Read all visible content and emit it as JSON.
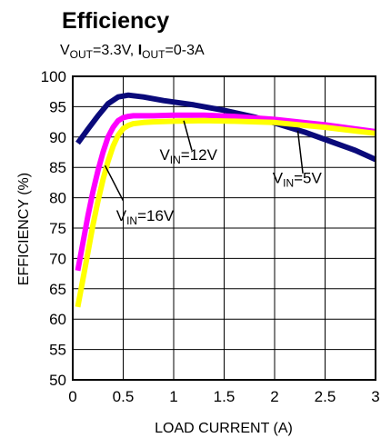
{
  "chart_data": {
    "type": "line",
    "title": "Efficiency",
    "subtitle": {
      "parts": [
        {
          "text": "V",
          "bold": false,
          "sub": false
        },
        {
          "text": "OUT",
          "bold": false,
          "sub": true
        },
        {
          "text": "=3.3V, ",
          "bold": false,
          "sub": false
        },
        {
          "text": "I",
          "bold": true,
          "sub": false
        },
        {
          "text": "OUT",
          "bold": false,
          "sub": true
        },
        {
          "text": "=0-3A",
          "bold": false,
          "sub": false
        }
      ]
    },
    "xlabel": "LOAD CURRENT (A)",
    "ylabel": "EFFICIENCY (%)",
    "xlim": [
      0,
      3
    ],
    "ylim": [
      50,
      100
    ],
    "xticks": [
      {
        "value": 0,
        "label": "0"
      },
      {
        "value": 0.5,
        "label": "0.5"
      },
      {
        "value": 1,
        "label": "1"
      },
      {
        "value": 1.5,
        "label": "1.5"
      },
      {
        "value": 2,
        "label": "2"
      },
      {
        "value": 2.5,
        "label": "2.5"
      },
      {
        "value": 3,
        "label": "3"
      }
    ],
    "yticks": [
      {
        "value": 50,
        "label": "50"
      },
      {
        "value": 55,
        "label": "55"
      },
      {
        "value": 60,
        "label": "60"
      },
      {
        "value": 65,
        "label": "65"
      },
      {
        "value": 70,
        "label": "70"
      },
      {
        "value": 75,
        "label": "75"
      },
      {
        "value": 80,
        "label": "80"
      },
      {
        "value": 85,
        "label": "85"
      },
      {
        "value": 90,
        "label": "90"
      },
      {
        "value": 95,
        "label": "95"
      },
      {
        "value": 100,
        "label": "100"
      }
    ],
    "grid": true,
    "series": [
      {
        "id": "vin-5v",
        "color": "#0a0a7a",
        "x": [
          0.05,
          0.15,
          0.25,
          0.35,
          0.45,
          0.55,
          0.7,
          0.9,
          1.2,
          1.5,
          1.8,
          2.0,
          2.3,
          2.6,
          2.8,
          3.0
        ],
        "y": [
          89,
          91.3,
          93.5,
          95.5,
          96.6,
          96.9,
          96.6,
          96.0,
          95.3,
          94.4,
          93.3,
          92.3,
          90.8,
          89.0,
          87.8,
          86.3
        ]
      },
      {
        "id": "vin-12v",
        "color": "#ff00ff",
        "x": [
          0.05,
          0.1,
          0.15,
          0.2,
          0.25,
          0.3,
          0.35,
          0.4,
          0.45,
          0.5,
          0.55,
          0.6,
          0.7,
          0.8,
          1.0,
          1.3,
          1.6,
          2.0,
          2.5,
          3.0
        ],
        "y": [
          68,
          72.5,
          77,
          81,
          84.5,
          87.5,
          90.0,
          91.6,
          92.7,
          93.2,
          93.4,
          93.5,
          93.5,
          93.5,
          93.6,
          93.6,
          93.4,
          92.9,
          92.0,
          90.9
        ]
      },
      {
        "id": "vin-16v",
        "color": "#ffff00",
        "x": [
          0.05,
          0.1,
          0.15,
          0.2,
          0.25,
          0.3,
          0.35,
          0.4,
          0.45,
          0.5,
          0.55,
          0.6,
          0.7,
          0.8,
          1.0,
          1.3,
          1.6,
          2.0,
          2.5,
          3.0
        ],
        "y": [
          62,
          66.5,
          71,
          75.5,
          79.5,
          83,
          86,
          88.5,
          90.3,
          91.4,
          91.9,
          92.2,
          92.4,
          92.5,
          92.6,
          92.7,
          92.6,
          92.4,
          91.6,
          90.6
        ]
      }
    ],
    "annotations": [
      {
        "id": "vin-12v",
        "base": "V",
        "sub": "IN",
        "suffix": "=12V"
      },
      {
        "id": "vin-5v",
        "base": "V",
        "sub": "IN",
        "suffix": "=5V"
      },
      {
        "id": "vin-16v",
        "base": "V",
        "sub": "IN",
        "suffix": "=16V"
      }
    ]
  }
}
